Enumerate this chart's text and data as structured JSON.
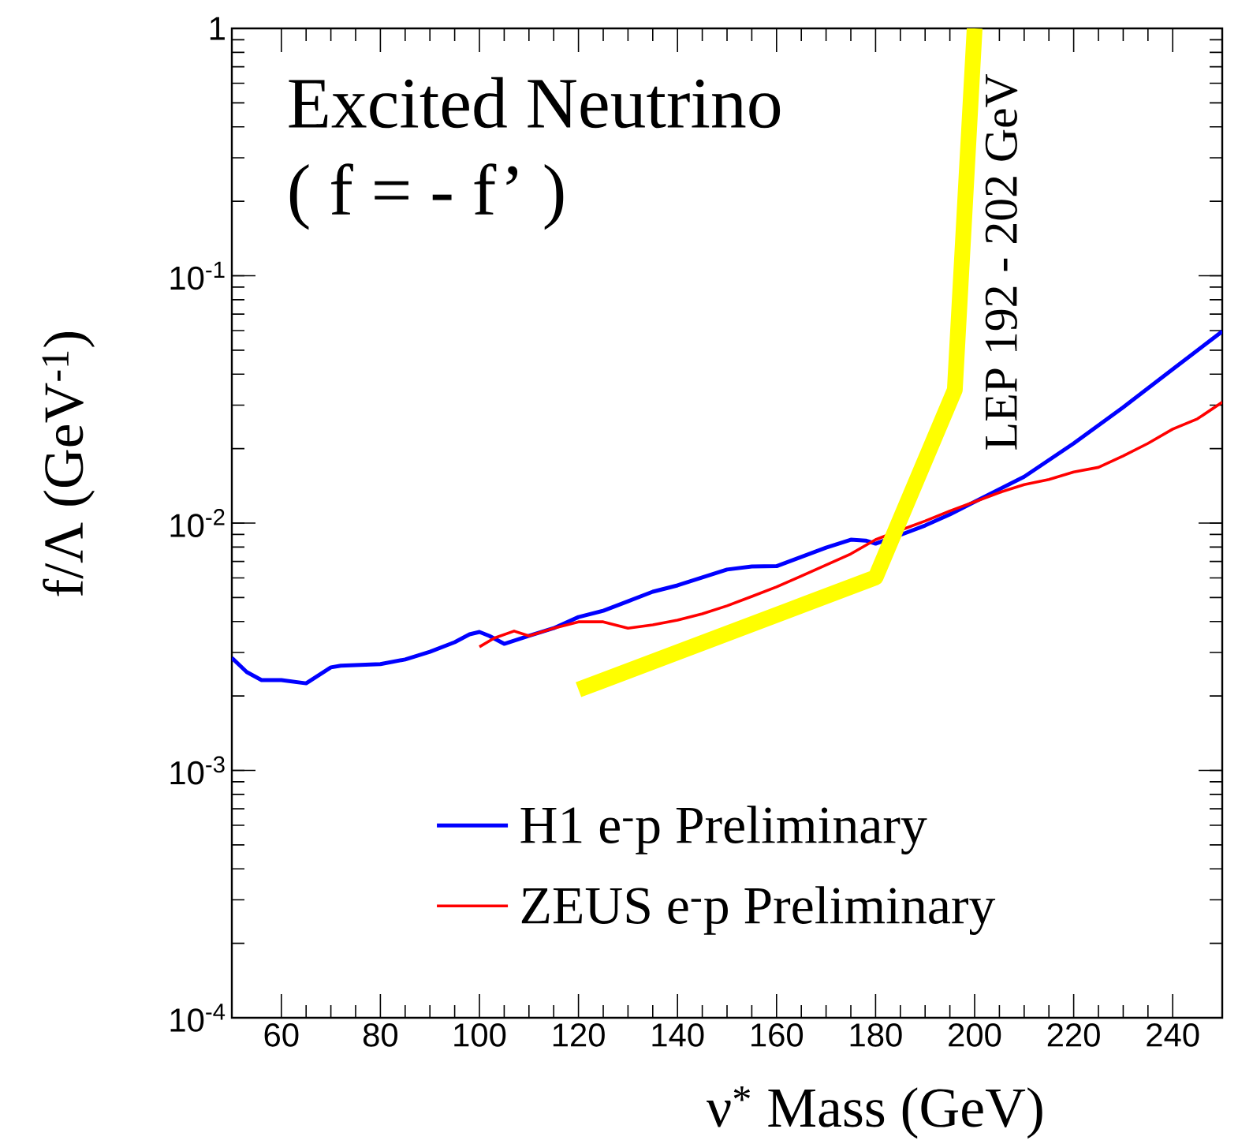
{
  "chart_data": {
    "type": "line",
    "title": "Excited Neutrino",
    "subtitle": "( f = - f’ )",
    "xlabel": "ν$^{*}$ Mass (GeV)",
    "ylabel": "f/Λ (GeV$^{-1}$)",
    "xlim": [
      50,
      250
    ],
    "ylim": [
      0.0001,
      1
    ],
    "log": "y",
    "legend": "bottom",
    "xticks": [
      60,
      80,
      100,
      120,
      140,
      160,
      180,
      200,
      220,
      240
    ],
    "yticks": [
      {
        "value": 0.0001,
        "label": "10$^{-4}$"
      },
      {
        "value": 0.001,
        "label": "10$^{-3}$"
      },
      {
        "value": 0.01,
        "label": "10$^{-2}$"
      },
      {
        "value": 0.1,
        "label": "10$^{-1}$"
      },
      1
    ],
    "annotations": [
      "LEP 192 - 202 GeV"
    ],
    "series": [
      {
        "name": "H1  e$^{-}$p Preliminary",
        "color": "#0000ff",
        "x": [
          50,
          53,
          56,
          60,
          65,
          70,
          72,
          80,
          85,
          90,
          95,
          98,
          100,
          102,
          105,
          110,
          115,
          120,
          125,
          130,
          135,
          140,
          145,
          150,
          155,
          160,
          165,
          170,
          175,
          178,
          180,
          185,
          190,
          195,
          200,
          210,
          220,
          230,
          240,
          250
        ],
        "values": [
          0.00285,
          0.0025,
          0.00232,
          0.00232,
          0.00225,
          0.00261,
          0.00265,
          0.00269,
          0.00281,
          0.00302,
          0.0033,
          0.00355,
          0.00363,
          0.0035,
          0.00325,
          0.0035,
          0.00376,
          0.00417,
          0.00442,
          0.00483,
          0.00528,
          0.0056,
          0.00603,
          0.00649,
          0.00668,
          0.0067,
          0.0073,
          0.00796,
          0.00857,
          0.0085,
          0.00826,
          0.00896,
          0.00978,
          0.01084,
          0.0122,
          0.0154,
          0.021,
          0.0294,
          0.0419,
          0.0596
        ]
      },
      {
        "name": "ZEUS  e$^{-}$p Preliminary",
        "color": "#ff0000",
        "x": [
          100,
          103,
          107,
          110,
          115,
          120,
          125,
          130,
          135,
          140,
          145,
          150,
          155,
          160,
          165,
          170,
          175,
          180,
          185,
          190,
          195,
          200,
          205,
          210,
          215,
          220,
          225,
          230,
          235,
          240,
          245,
          250
        ],
        "values": [
          0.00316,
          0.00343,
          0.00366,
          0.0035,
          0.00376,
          0.00399,
          0.00399,
          0.00376,
          0.00388,
          0.00405,
          0.0043,
          0.00463,
          0.00505,
          0.00552,
          0.00611,
          0.00677,
          0.00751,
          0.00857,
          0.00936,
          0.0102,
          0.0112,
          0.0122,
          0.0133,
          0.0143,
          0.015,
          0.0161,
          0.0168,
          0.0187,
          0.021,
          0.024,
          0.0264,
          0.0308
        ]
      },
      {
        "color": "#ffff00",
        "x": [
          120,
          180,
          196,
          200
        ],
        "values": [
          0.00212,
          0.00603,
          0.0346,
          1
        ]
      }
    ]
  }
}
